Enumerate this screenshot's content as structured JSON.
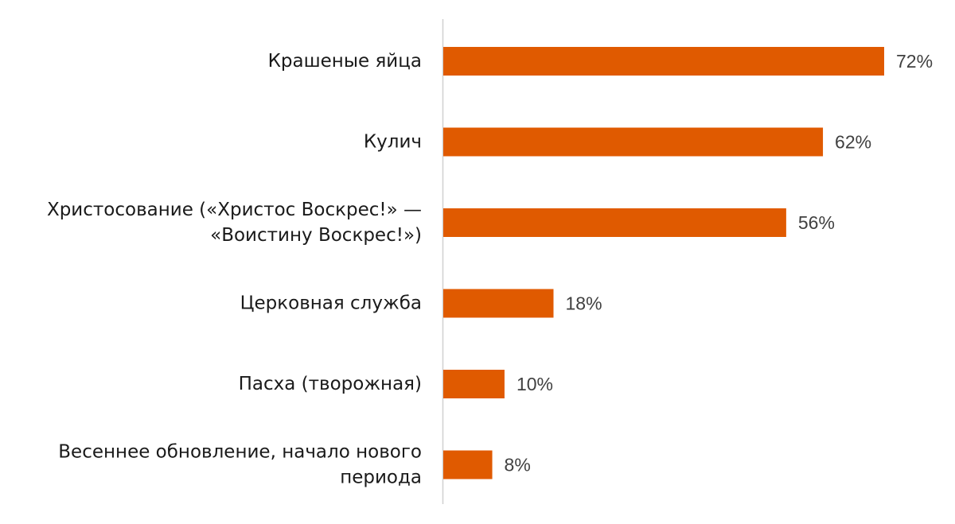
{
  "chart_data": {
    "type": "bar",
    "orientation": "horizontal",
    "categories": [
      [
        "Крашеные яйца"
      ],
      [
        "Кулич"
      ],
      [
        "Христосование («Христос Воскрес!» —",
        "«Воистину Воскрес!»)"
      ],
      [
        "Церковная служба"
      ],
      [
        "Пасха (творожная)"
      ],
      [
        "Весеннее обновление, начало нового",
        "периода"
      ]
    ],
    "values": [
      72,
      62,
      56,
      18,
      10,
      8
    ],
    "value_labels": [
      "72%",
      "62%",
      "56%",
      "18%",
      "10%",
      "8%"
    ],
    "xlim": [
      0,
      72
    ],
    "grid": false,
    "legend": "none",
    "bar_color": "#E05A00"
  }
}
